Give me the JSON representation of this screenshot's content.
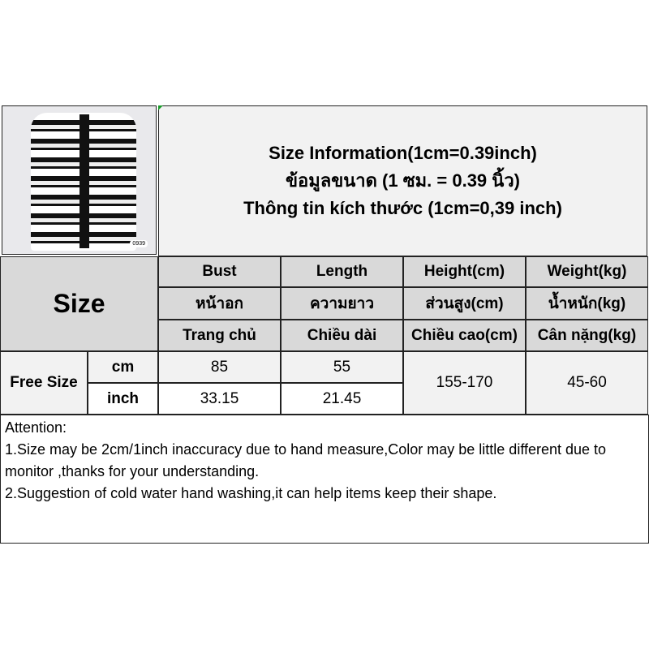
{
  "product_image": {
    "code_label": "0939"
  },
  "title": {
    "line1": "Size Information(1cm=0.39inch)",
    "line2": "ข้อมูลขนาด (1 ซม. = 0.39 นิ้ว)",
    "line3": "Thông tin kích thước (1cm=0,39 inch)"
  },
  "table": {
    "size_label": "Size",
    "columns": [
      {
        "en": "Bust",
        "th": "หน้าอก",
        "vi": "Trang chủ"
      },
      {
        "en": "Length",
        "th": "ความยาว",
        "vi": "Chiều dài"
      },
      {
        "en": "Height(cm)",
        "th": "ส่วนสูง(cm)",
        "vi": "Chiều cao(cm)"
      },
      {
        "en": "Weight(kg)",
        "th": "น้ำหนัก(kg)",
        "vi": "Cân nặng(kg)"
      }
    ],
    "row": {
      "size": "Free Size",
      "cm_label": "cm",
      "inch_label": "inch",
      "bust_cm": "85",
      "length_cm": "55",
      "bust_inch": "33.15",
      "length_inch": "21.45",
      "height": "155-170",
      "weight": "45-60"
    }
  },
  "attention": {
    "heading": "Attention:",
    "line1": "1.Size may be 2cm/1inch inaccuracy due to hand measure,Color may be little different due to monitor ,thanks for your understanding.",
    "line2": "2.Suggestion of cold water hand washing,it can help items keep their shape."
  }
}
